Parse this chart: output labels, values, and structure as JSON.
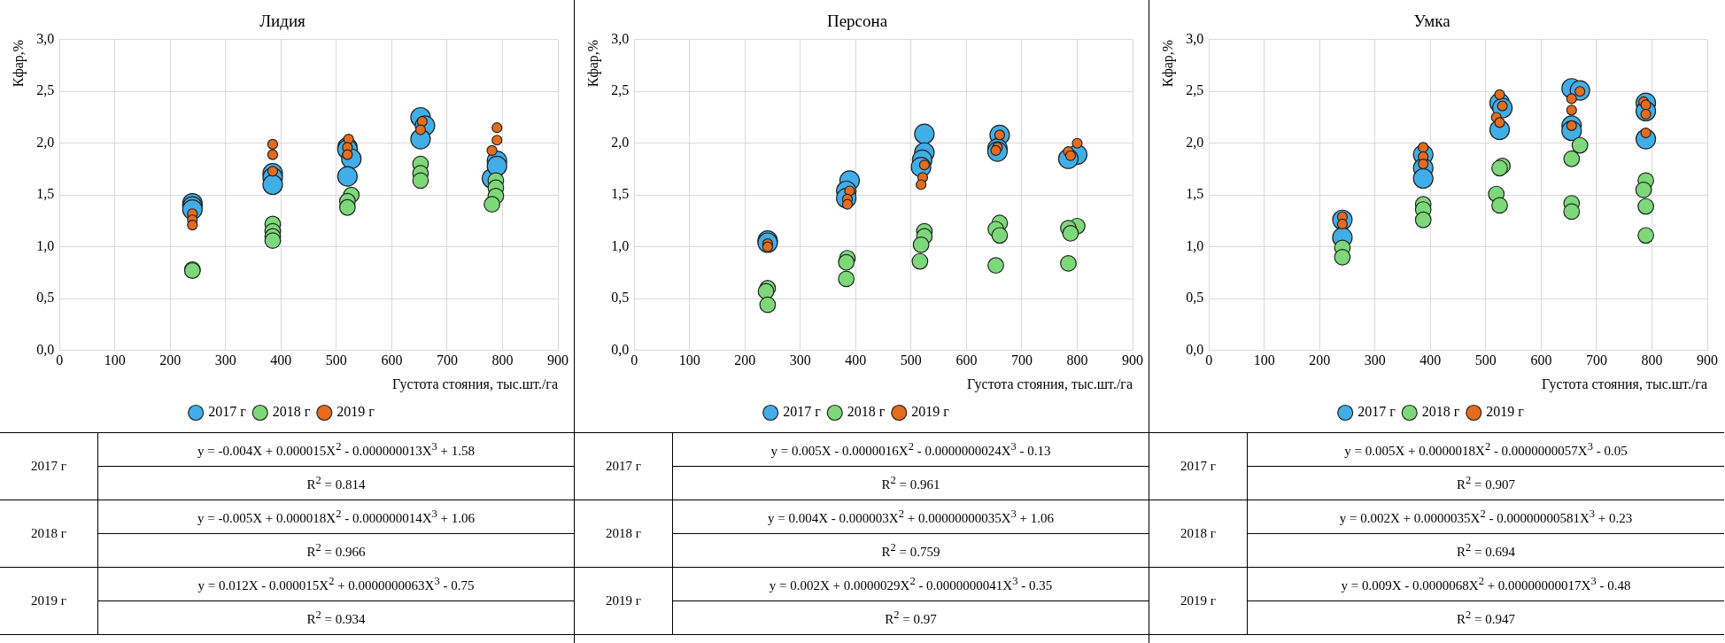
{
  "chart_data": [
    {
      "type": "bubble",
      "title": "Лидия",
      "xlabel": "Густота стояния, тыс.шт./га",
      "ylabel": "Кфар,%",
      "xlim": [
        0,
        900
      ],
      "xticks": [
        0,
        100,
        200,
        300,
        400,
        500,
        600,
        700,
        800,
        900
      ],
      "ylim": [
        0,
        3
      ],
      "yticks": [
        {
          "value": 0,
          "label": "0,0"
        },
        {
          "value": 0.5,
          "label": "0,5"
        },
        {
          "value": 1,
          "label": "1,0"
        },
        {
          "value": 1.5,
          "label": "1,5"
        },
        {
          "value": 2,
          "label": "2,0"
        },
        {
          "value": 2.5,
          "label": "2,5"
        },
        {
          "value": 3,
          "label": "3,0"
        }
      ],
      "grid": true,
      "legend": "bottom",
      "marker": "circle",
      "series": [
        {
          "name": "2017 г",
          "color": "#41aee8",
          "x": [
            240,
            240,
            240,
            385,
            385,
            385,
            520,
            520,
            527,
            520,
            652,
            660,
            652,
            781,
            790,
            790
          ],
          "values": [
            1.42,
            1.39,
            1.36,
            1.71,
            1.67,
            1.6,
            1.96,
            1.94,
            1.85,
            1.68,
            2.25,
            2.17,
            2.04,
            1.66,
            1.83,
            1.78
          ],
          "sizes": [
            1,
            1,
            1,
            1,
            1,
            1,
            1,
            1,
            1,
            1,
            1,
            1,
            1,
            1,
            1,
            1
          ]
        },
        {
          "name": "2018 г",
          "color": "#7dd87a",
          "x": [
            240,
            240,
            385,
            385,
            385,
            385,
            527,
            520,
            520,
            652,
            652,
            652,
            788,
            788,
            788,
            781
          ],
          "values": [
            0.78,
            0.77,
            1.22,
            1.15,
            1.1,
            1.06,
            1.5,
            1.44,
            1.38,
            1.8,
            1.71,
            1.64,
            1.64,
            1.57,
            1.49,
            1.41
          ],
          "sizes": [
            0.64,
            0.64,
            0.64,
            0.64,
            0.64,
            0.64,
            0.64,
            0.64,
            0.64,
            0.64,
            0.64,
            0.64,
            0.64,
            0.64,
            0.64,
            0.64
          ]
        },
        {
          "name": "2019 г",
          "color": "#e46c1e",
          "x": [
            240,
            240,
            240,
            385,
            385,
            385,
            522,
            520,
            520,
            655,
            652,
            790,
            790,
            781
          ],
          "values": [
            1.32,
            1.26,
            1.21,
            1.99,
            1.89,
            1.73,
            2.04,
            1.96,
            1.89,
            2.21,
            2.13,
            2.15,
            2.03,
            1.93
          ],
          "sizes": [
            0.25,
            0.25,
            0.25,
            0.25,
            0.25,
            0.25,
            0.25,
            0.25,
            0.25,
            0.25,
            0.25,
            0.25,
            0.25,
            0.25
          ]
        }
      ],
      "annotations": [
        "2017 г",
        "y = -0.004X + 0.000015X$^{2}$ - 0.000000013X$^{3}$ + 1.58",
        "R$^{2}$ = 0.814",
        "2018 г",
        "y = -0.005X + 0.000018X$^{2}$ - 0.000000014X$^{3}$ + 1.06",
        "R$^{2}$ = 0.966",
        "2019 г",
        "y = 0.012X - 0.000015X$^{2}$ + 0.0000000063X$^{3}$ - 0.75",
        "R$^{2}$ = 0.934"
      ]
    },
    {
      "type": "bubble",
      "title": "Персона",
      "xlabel": "Густота стояния, тыс.шт./га",
      "ylabel": "Кфар,%",
      "xlim": [
        0,
        900
      ],
      "xticks": [
        0,
        100,
        200,
        300,
        400,
        500,
        600,
        700,
        800,
        900
      ],
      "ylim": [
        0,
        3
      ],
      "yticks": [
        {
          "value": 0,
          "label": "0,0"
        },
        {
          "value": 0.5,
          "label": "0,5"
        },
        {
          "value": 1,
          "label": "1,0"
        },
        {
          "value": 1.5,
          "label": "1,5"
        },
        {
          "value": 2,
          "label": "2,0"
        },
        {
          "value": 2.5,
          "label": "2,5"
        },
        {
          "value": 3,
          "label": "3,0"
        }
      ],
      "grid": true,
      "legend": "bottom",
      "marker": "circle",
      "series": [
        {
          "name": "2017 г",
          "color": "#41aee8",
          "x": [
            241,
            241,
            389,
            383,
            383,
            524,
            524,
            520,
            518,
            660,
            656,
            656,
            800,
            784
          ],
          "values": [
            1.06,
            1.04,
            1.64,
            1.54,
            1.47,
            2.09,
            1.91,
            1.84,
            1.77,
            2.08,
            1.95,
            1.92,
            1.89,
            1.85
          ],
          "sizes": [
            1,
            1,
            1,
            1,
            1,
            1,
            1,
            1,
            1,
            1,
            1,
            1,
            1,
            1
          ]
        },
        {
          "name": "2018 г",
          "color": "#7dd87a",
          "x": [
            241,
            238,
            241,
            385,
            383,
            383,
            524,
            524,
            518,
            516,
            660,
            653,
            660,
            653,
            800,
            784,
            788,
            784
          ],
          "values": [
            0.6,
            0.57,
            0.44,
            0.89,
            0.85,
            0.69,
            1.15,
            1.1,
            1.02,
            0.86,
            1.23,
            1.17,
            1.11,
            0.82,
            1.2,
            1.18,
            1.13,
            0.84
          ],
          "sizes": [
            0.64,
            0.64,
            0.64,
            0.64,
            0.64,
            0.64,
            0.64,
            0.64,
            0.64,
            0.64,
            0.64,
            0.64,
            0.64,
            0.64,
            0.64,
            0.64,
            0.64,
            0.64
          ]
        },
        {
          "name": "2019 г",
          "color": "#e46c1e",
          "x": [
            241,
            241,
            389,
            385,
            385,
            524,
            521,
            518,
            660,
            656,
            653,
            800,
            784,
            788
          ],
          "values": [
            1.03,
            1,
            1.54,
            1.46,
            1.41,
            1.79,
            1.67,
            1.6,
            2.08,
            1.96,
            1.93,
            2,
            1.92,
            1.88
          ],
          "sizes": [
            0.25,
            0.25,
            0.25,
            0.25,
            0.25,
            0.25,
            0.25,
            0.25,
            0.25,
            0.25,
            0.25,
            0.25,
            0.25,
            0.25
          ]
        }
      ],
      "annotations": [
        "2017 г",
        "y = 0.005X - 0.0000016X$^{2}$ - 0.0000000024X$^{3}$ - 0.13",
        "R$^{2}$ = 0.961",
        "2018 г",
        "y = 0.004X - 0.000003X$^{2}$ + 0.00000000035X$^{3}$ + 1.06",
        "R$^{2}$ = 0.759",
        "2019 г",
        "y = 0.002X + 0.0000029X$^{2}$ - 0.0000000041X$^{3}$ - 0.35",
        "R$^{2}$ = 0.97"
      ]
    },
    {
      "type": "bubble",
      "title": "Умка",
      "xlabel": "Густота стояния, тыс.шт./га",
      "ylabel": "Кфар,%",
      "xlim": [
        0,
        900
      ],
      "xticks": [
        0,
        100,
        200,
        300,
        400,
        500,
        600,
        700,
        800,
        900
      ],
      "ylim": [
        0,
        3
      ],
      "yticks": [
        {
          "value": 0,
          "label": "0,0"
        },
        {
          "value": 0.5,
          "label": "0,5"
        },
        {
          "value": 1,
          "label": "1,0"
        },
        {
          "value": 1.5,
          "label": "1,5"
        },
        {
          "value": 2,
          "label": "2,0"
        },
        {
          "value": 2.5,
          "label": "2,5"
        },
        {
          "value": 3,
          "label": "3,0"
        }
      ],
      "grid": true,
      "legend": "bottom",
      "marker": "circle",
      "series": [
        {
          "name": "2017 г",
          "color": "#41aee8",
          "x": [
            241,
            241,
            387,
            387,
            387,
            525,
            530,
            525,
            655,
            670,
            655,
            655,
            789,
            789,
            789
          ],
          "values": [
            1.26,
            1.09,
            1.89,
            1.76,
            1.66,
            2.39,
            2.34,
            2.13,
            2.53,
            2.51,
            2.17,
            2.12,
            2.39,
            2.31,
            2.04
          ],
          "sizes": [
            1,
            1,
            1,
            1,
            1,
            1,
            1,
            1,
            1,
            1,
            1,
            1,
            1,
            1,
            1
          ]
        },
        {
          "name": "2018 г",
          "color": "#7dd87a",
          "x": [
            241,
            241,
            387,
            387,
            387,
            530,
            525,
            519,
            525,
            670,
            655,
            655,
            655,
            789,
            785,
            789,
            789
          ],
          "values": [
            0.99,
            0.9,
            1.41,
            1.36,
            1.26,
            1.78,
            1.76,
            1.51,
            1.4,
            1.98,
            1.85,
            1.42,
            1.34,
            1.64,
            1.55,
            1.39,
            1.11
          ],
          "sizes": [
            0.64,
            0.64,
            0.64,
            0.64,
            0.64,
            0.64,
            0.64,
            0.64,
            0.64,
            0.64,
            0.64,
            0.64,
            0.64,
            0.64,
            0.64,
            0.64,
            0.64
          ]
        },
        {
          "name": "2019 г",
          "color": "#e46c1e",
          "x": [
            241,
            241,
            387,
            387,
            387,
            525,
            530,
            519,
            525,
            670,
            655,
            655,
            655,
            785,
            789,
            789,
            789
          ],
          "values": [
            1.29,
            1.22,
            1.96,
            1.87,
            1.8,
            2.47,
            2.36,
            2.25,
            2.2,
            2.5,
            2.43,
            2.32,
            2.17,
            2.4,
            2.37,
            2.28,
            2.1
          ],
          "sizes": [
            0.25,
            0.25,
            0.25,
            0.25,
            0.25,
            0.25,
            0.25,
            0.25,
            0.25,
            0.25,
            0.25,
            0.25,
            0.25,
            0.25,
            0.25,
            0.25,
            0.25
          ]
        }
      ],
      "annotations": [
        "2017 г",
        "y = 0.005X + 0.0000018X$^{2}$ - 0.0000000057X$^{3}$ - 0.05",
        "R$^{2}$ = 0.907",
        "2018 г",
        "y = 0.002X + 0.0000035X$^{2}$ - 0.00000000581X$^{3}$ + 0.23",
        "R$^{2}$ = 0.694",
        "2019 г",
        "y = 0.009X - 0.0000068X$^{2}$ + 0.00000000017X$^{3}$ - 0.48",
        "R$^{2}$ = 0.947"
      ]
    }
  ]
}
